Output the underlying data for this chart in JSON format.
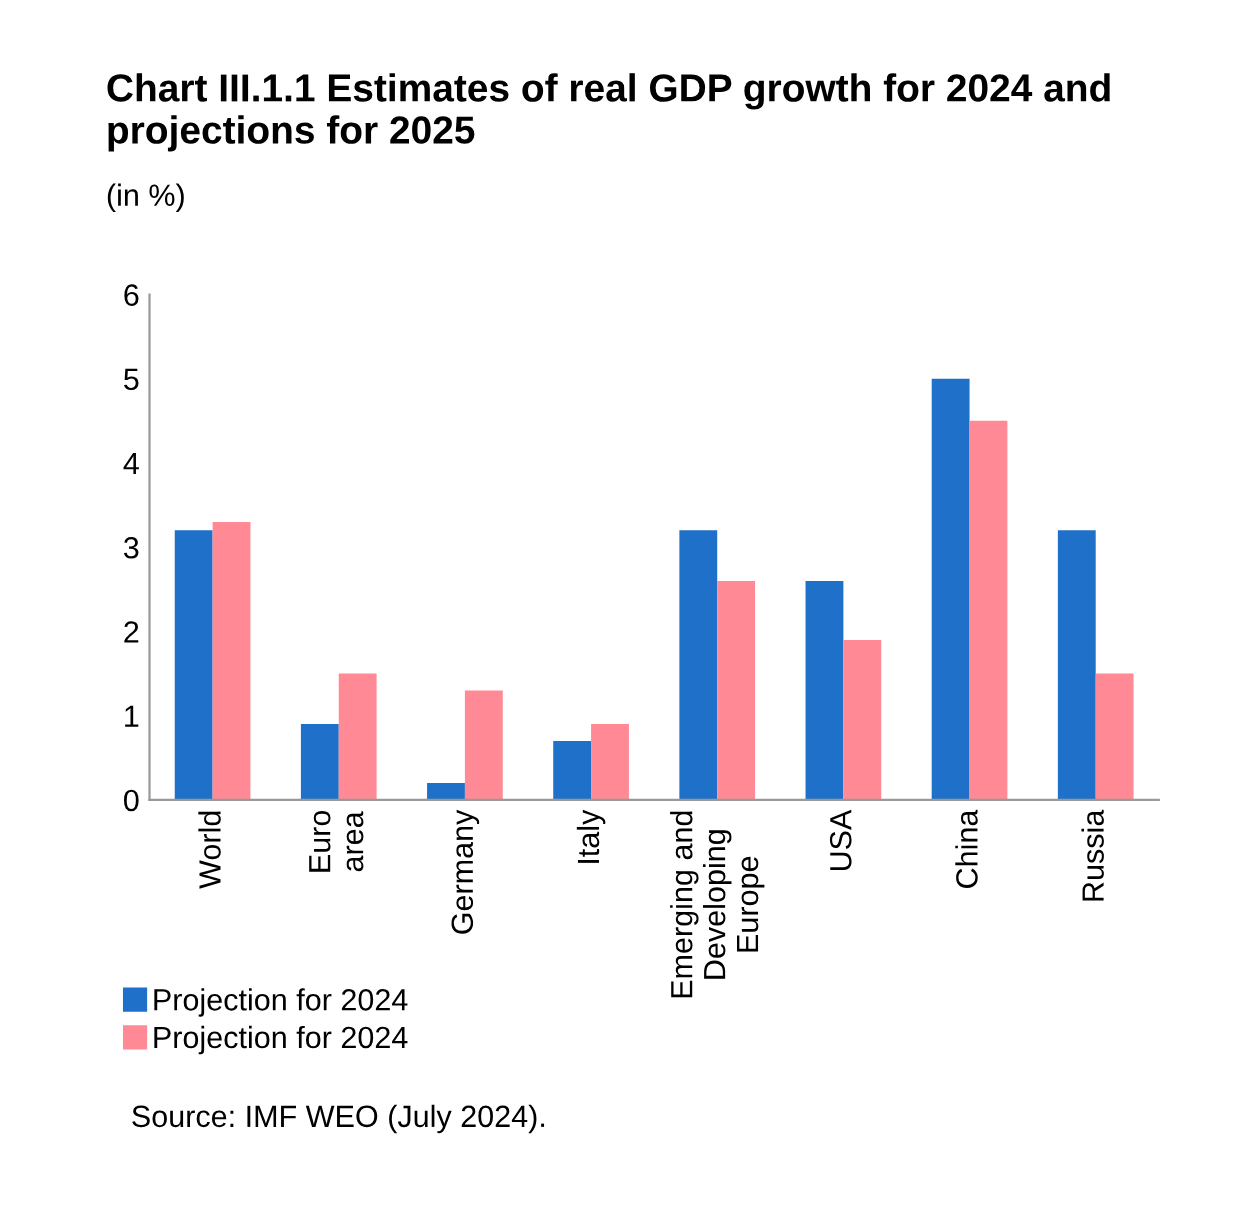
{
  "chart_data": {
    "type": "bar",
    "title": "Chart III.1.1 Estimates of real GDP growth for 2024 and projections for 2025",
    "subtitle": "(in %)",
    "categories": [
      "World",
      "Euro\narea",
      "Germany",
      "Italy",
      "Emerging and\nDeveloping\nEurope",
      "USA",
      "China",
      "Russia"
    ],
    "series": [
      {
        "name": "Projection for 2024",
        "color": "#1f70c8",
        "values": [
          3.2,
          0.9,
          0.2,
          0.7,
          3.2,
          2.6,
          5.0,
          3.2
        ]
      },
      {
        "name": "Projection for 2024",
        "color": "#ff8a95",
        "values": [
          3.3,
          1.5,
          1.3,
          0.9,
          2.6,
          1.9,
          4.5,
          1.5
        ]
      }
    ],
    "ylim": [
      0,
      6
    ],
    "yticks": [
      0,
      1,
      2,
      3,
      4,
      5,
      6
    ],
    "grid": false,
    "legend": "bottom left",
    "annotations": [
      "Source: IMF WEO (July 2024)."
    ]
  }
}
